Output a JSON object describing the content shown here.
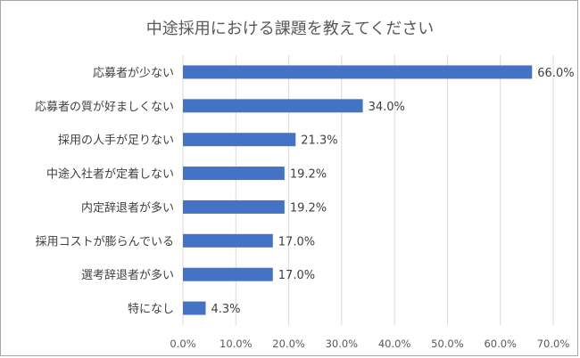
{
  "chart_data": {
    "type": "bar",
    "orientation": "horizontal",
    "title": "中途採用における課題を教えてください",
    "categories": [
      "応募者が少ない",
      "応募者の質が好ましくない",
      "採用の人手が足りない",
      "中途入社者が定着しない",
      "内定辞退者が多い",
      "採用コストが膨らんでいる",
      "選考辞退者が多い",
      "特になし"
    ],
    "values": [
      66.0,
      34.0,
      21.3,
      19.2,
      19.2,
      17.0,
      17.0,
      4.3
    ],
    "value_labels": [
      "66.0%",
      "34.0%",
      "21.3%",
      "19.2%",
      "19.2%",
      "17.0%",
      "17.0%",
      "4.3%"
    ],
    "xlim": [
      0,
      70
    ],
    "x_ticks": [
      "0.0%",
      "10.0%",
      "20.0%",
      "30.0%",
      "40.0%",
      "50.0%",
      "60.0%",
      "70.0%"
    ],
    "grid": true,
    "legend": "none",
    "colors": {
      "bar": "#4472c4",
      "grid": "#d9d9d9",
      "text": "#404040",
      "title": "#595959",
      "border": "#a6a6a6"
    }
  }
}
